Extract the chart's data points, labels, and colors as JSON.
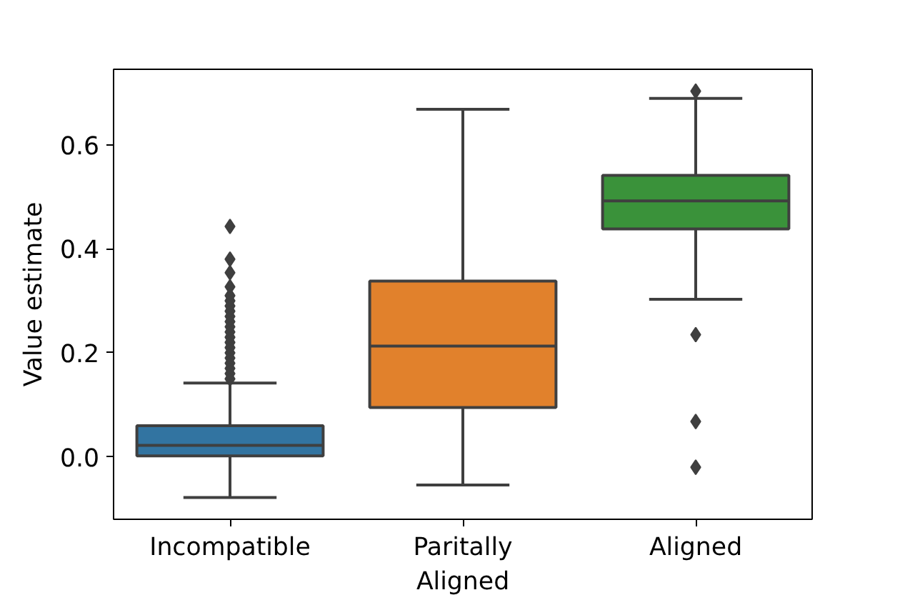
{
  "chart_data": {
    "type": "box",
    "ylabel": "Value estimate",
    "categories": [
      "Incompatible",
      "Paritally\nAligned",
      "Aligned"
    ],
    "colors": [
      "#3274a1",
      "#e1812c",
      "#3a923a"
    ],
    "boxes": [
      {
        "low": -0.078,
        "q1": 0.002,
        "median": 0.022,
        "q3": 0.06,
        "high": 0.142,
        "outliers": [
          0.15,
          0.16,
          0.17,
          0.18,
          0.19,
          0.2,
          0.21,
          0.22,
          0.23,
          0.24,
          0.25,
          0.26,
          0.27,
          0.28,
          0.29,
          0.3,
          0.31,
          0.327,
          0.354,
          0.38,
          0.443
        ]
      },
      {
        "low": -0.054,
        "q1": 0.095,
        "median": 0.213,
        "q3": 0.338,
        "high": 0.668
      },
      {
        "low": 0.303,
        "q1": 0.438,
        "median": 0.492,
        "q3": 0.541,
        "high": 0.689,
        "outliers": [
          0.703,
          -0.02,
          0.068,
          0.235
        ]
      }
    ],
    "ylim": [
      -0.12,
      0.745
    ],
    "yticks": [
      {
        "value": 0,
        "label": "0.0"
      },
      0.2,
      0.4,
      0.6
    ],
    "grid": false
  }
}
